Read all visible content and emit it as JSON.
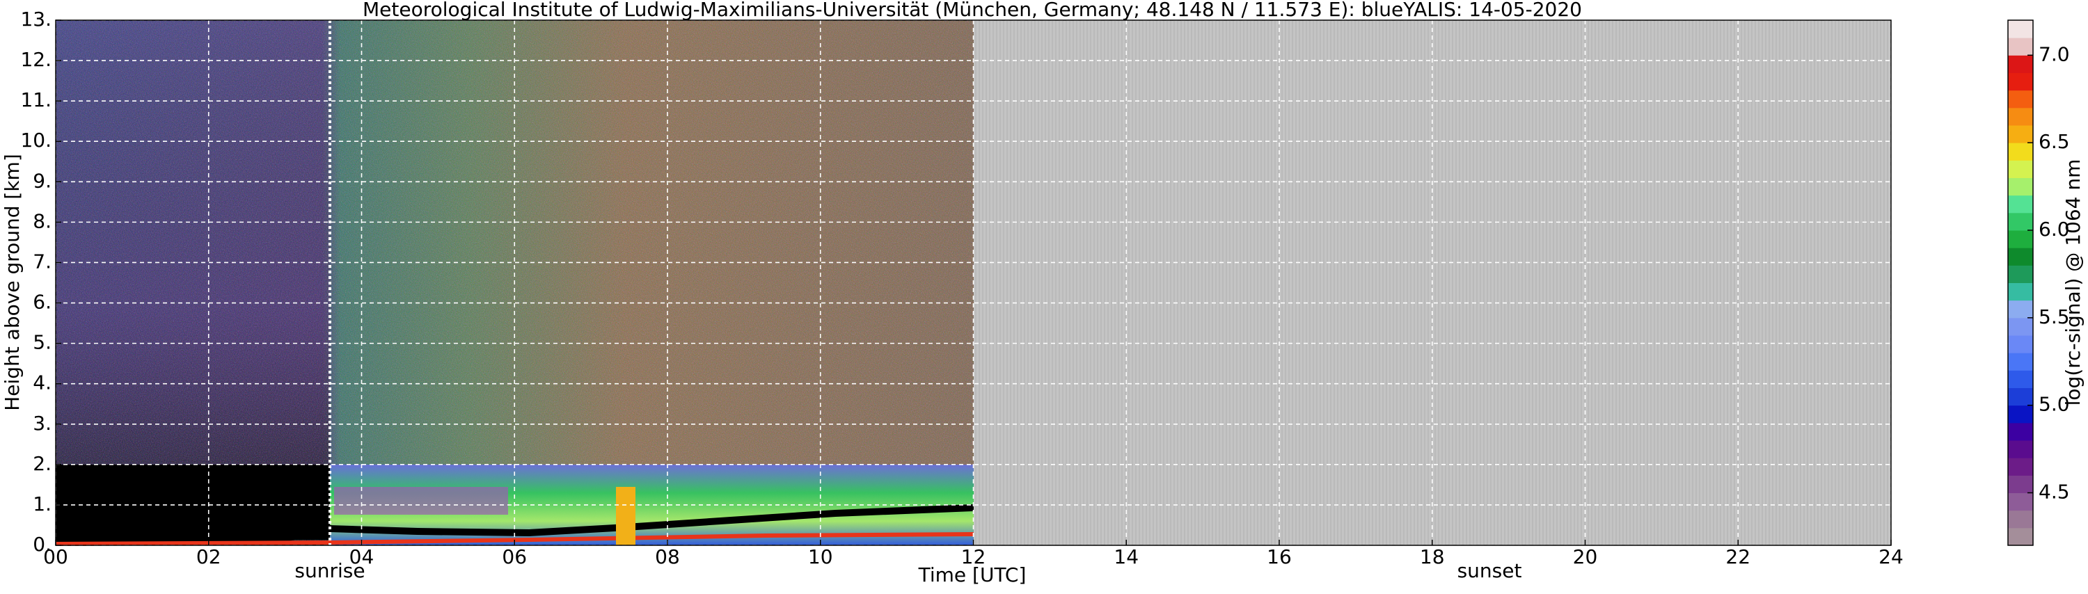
{
  "chart_data": {
    "type": "heatmap",
    "title": "Meteorological Institute of Ludwig-Maximilians-Universität (München, Germany; 48.148 N / 11.573 E):    blueYALIS: 14-05-2020",
    "x_label": "Time [UTC]",
    "y_label": "Height above ground [km]",
    "xlim": [
      0,
      24
    ],
    "xticks": [
      {
        "value": 0,
        "label": "00"
      },
      {
        "value": 2,
        "label": "02"
      },
      {
        "value": 4,
        "label": "04"
      },
      {
        "value": 6,
        "label": "06"
      },
      {
        "value": 8,
        "label": "08"
      },
      {
        "value": 10,
        "label": "10"
      },
      {
        "value": 12,
        "label": "12"
      },
      {
        "value": 14,
        "label": "14"
      },
      {
        "value": 16,
        "label": "16"
      },
      {
        "value": 18,
        "label": "18"
      },
      {
        "value": 20,
        "label": "20"
      },
      {
        "value": 22,
        "label": "22"
      },
      {
        "value": 24,
        "label": "24"
      }
    ],
    "ylim": [
      0,
      13
    ],
    "yticks": [
      {
        "value": 0,
        "label": "0."
      },
      {
        "value": 1,
        "label": "1."
      },
      {
        "value": 2,
        "label": "2."
      },
      {
        "value": 3,
        "label": "3."
      },
      {
        "value": 4,
        "label": "4."
      },
      {
        "value": 5,
        "label": "5."
      },
      {
        "value": 6,
        "label": "6."
      },
      {
        "value": 7,
        "label": "7."
      },
      {
        "value": 8,
        "label": "8."
      },
      {
        "value": 9,
        "label": "9."
      },
      {
        "value": 10,
        "label": "10."
      },
      {
        "value": 11,
        "label": "11."
      },
      {
        "value": 12,
        "label": "12."
      },
      {
        "value": 13,
        "label": "13."
      }
    ],
    "grid": true,
    "annotations": [
      "sunrise",
      "sunset"
    ],
    "colorbar": {
      "label": "log(rc-signal) @ 1064 nm",
      "lim": [
        4.2,
        7.2
      ],
      "ticks": [
        4.5,
        {
          "value": 5,
          "label": "5.0"
        },
        5.5,
        {
          "value": 6,
          "label": "6.0"
        },
        6.5,
        {
          "value": 7,
          "label": "7.0"
        }
      ],
      "colors": [
        "#a48e9a",
        "#9a7896",
        "#8e5c98",
        "#7c3c8e",
        "#6c1c88",
        "#5a0c8e",
        "#3c00a2",
        "#0a14c4",
        "#1c3ed8",
        "#2e5aea",
        "#4a76f6",
        "#6a88f6",
        "#7c96f2",
        "#8cacf0",
        "#36bca2",
        "#1e9a5a",
        "#0e8a2c",
        "#1eae3e",
        "#32c866",
        "#54e294",
        "#a6f06c",
        "#d4f250",
        "#f2dc1c",
        "#f6ae12",
        "#f68c12",
        "#f45e10",
        "#e61e10",
        "#dc1616",
        "#e8c4c4",
        "#f2e4e4"
      ]
    }
  }
}
